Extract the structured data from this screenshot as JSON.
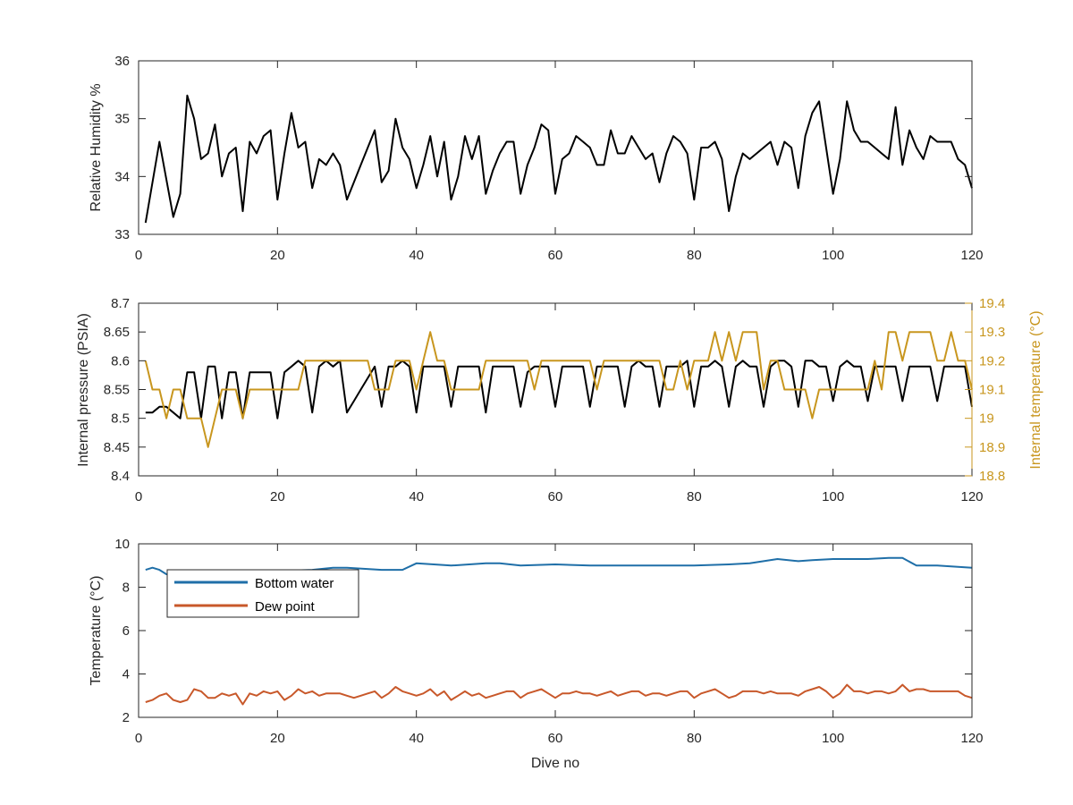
{
  "colors": {
    "black_series": "#000000",
    "internal_temperature": "#c8961e",
    "bottom_water": "#1f6fa8",
    "dew_point": "#c8582a",
    "axis": "#262626"
  },
  "chart_data": [
    {
      "type": "line",
      "xlabel": "",
      "ylabel": "Relative Humidity %",
      "xlim": [
        0,
        120
      ],
      "ylim": [
        33,
        36
      ],
      "xticks": [
        "0",
        "20",
        "40",
        "60",
        "80",
        "100",
        "120"
      ],
      "yticks": [
        "33",
        "34",
        "35",
        "36"
      ],
      "grid": false,
      "series": [
        {
          "color": "#000000",
          "x": [
            1,
            3,
            5,
            6,
            7,
            8,
            9,
            10,
            11,
            12,
            13,
            14,
            15,
            16,
            17,
            18,
            19,
            20,
            21,
            22,
            23,
            24,
            25,
            26,
            27,
            28,
            29,
            30,
            31,
            32,
            33,
            34,
            35,
            36,
            37,
            38,
            39,
            40,
            41,
            42,
            43,
            44,
            45,
            46,
            47,
            48,
            49,
            50,
            51,
            52,
            53,
            54,
            55,
            56,
            57,
            58,
            59,
            60,
            61,
            62,
            63,
            64,
            65,
            66,
            67,
            68,
            69,
            70,
            71,
            72,
            73,
            74,
            75,
            76,
            77,
            78,
            79,
            80,
            81,
            82,
            83,
            84,
            85,
            86,
            87,
            88,
            89,
            90,
            91,
            92,
            93,
            94,
            95,
            96,
            97,
            98,
            99,
            100,
            101,
            102,
            103,
            104,
            105,
            106,
            107,
            108,
            109,
            110,
            111,
            112,
            113,
            114,
            115,
            116,
            117,
            118,
            119,
            120
          ],
          "values": [
            33.2,
            34.6,
            33.3,
            33.7,
            35.4,
            35.0,
            34.3,
            34.4,
            34.9,
            34.0,
            34.4,
            34.5,
            33.4,
            34.6,
            34.4,
            34.7,
            34.8,
            33.6,
            34.4,
            35.1,
            34.5,
            34.6,
            33.8,
            34.3,
            34.2,
            34.4,
            34.2,
            33.6,
            33.9,
            34.2,
            34.5,
            34.8,
            33.9,
            34.1,
            35.0,
            34.5,
            34.3,
            33.8,
            34.2,
            34.7,
            34.0,
            34.6,
            33.6,
            34.0,
            34.7,
            34.3,
            34.7,
            33.7,
            34.1,
            34.4,
            34.6,
            34.6,
            33.7,
            34.2,
            34.5,
            34.9,
            34.8,
            33.7,
            34.3,
            34.4,
            34.7,
            34.6,
            34.5,
            34.2,
            34.2,
            34.8,
            34.4,
            34.4,
            34.7,
            34.5,
            34.3,
            34.4,
            33.9,
            34.4,
            34.7,
            34.6,
            34.4,
            33.6,
            34.5,
            34.5,
            34.6,
            34.3,
            33.4,
            34.0,
            34.4,
            34.3,
            34.4,
            34.5,
            34.6,
            34.2,
            34.6,
            34.5,
            33.8,
            34.7,
            35.1,
            35.3,
            34.5,
            33.7,
            34.3,
            35.3,
            34.8,
            34.6,
            34.6,
            34.5,
            34.4,
            34.3,
            35.2,
            34.2,
            34.8,
            34.5,
            34.3,
            34.7,
            34.6,
            34.6,
            34.6,
            34.3,
            34.2,
            33.8
          ]
        }
      ]
    },
    {
      "type": "line",
      "xlabel": "",
      "ylabel": "Internal pressure (PSIA)",
      "ylabel_right": "Internal temperature (°C)",
      "xlim": [
        0,
        120
      ],
      "ylim": [
        8.4,
        8.7
      ],
      "ylim_right": [
        18.8,
        19.4
      ],
      "xticks": [
        "0",
        "20",
        "40",
        "60",
        "80",
        "100",
        "120"
      ],
      "yticks": [
        "8.4",
        "8.45",
        "8.5",
        "8.55",
        "8.6",
        "8.65",
        "8.7"
      ],
      "yticks_right": [
        "18.8",
        "18.9",
        "19",
        "19.1",
        "19.2",
        "19.3",
        "19.4"
      ],
      "grid": false,
      "series": [
        {
          "axis": "left",
          "color": "#000000",
          "x": [
            1,
            2,
            3,
            4,
            5,
            6,
            7,
            8,
            9,
            10,
            11,
            12,
            13,
            14,
            15,
            16,
            17,
            18,
            19,
            20,
            21,
            22,
            23,
            24,
            25,
            26,
            27,
            28,
            29,
            30,
            31,
            32,
            33,
            34,
            35,
            36,
            37,
            38,
            39,
            40,
            41,
            42,
            43,
            44,
            45,
            46,
            47,
            48,
            49,
            50,
            51,
            52,
            53,
            54,
            55,
            56,
            57,
            58,
            59,
            60,
            61,
            62,
            63,
            64,
            65,
            66,
            67,
            68,
            69,
            70,
            71,
            72,
            73,
            74,
            75,
            76,
            77,
            78,
            79,
            80,
            81,
            82,
            83,
            84,
            85,
            86,
            87,
            88,
            89,
            90,
            91,
            92,
            93,
            94,
            95,
            96,
            97,
            98,
            99,
            100,
            101,
            102,
            103,
            104,
            105,
            106,
            107,
            108,
            109,
            110,
            111,
            112,
            113,
            114,
            115,
            116,
            117,
            118,
            119,
            120
          ],
          "values": [
            8.51,
            8.51,
            8.52,
            8.52,
            8.51,
            8.5,
            8.58,
            8.58,
            8.5,
            8.59,
            8.59,
            8.5,
            8.58,
            8.58,
            8.5,
            8.58,
            8.58,
            8.58,
            8.58,
            8.5,
            8.58,
            8.59,
            8.6,
            8.59,
            8.51,
            8.59,
            8.6,
            8.59,
            8.6,
            8.51,
            8.53,
            8.55,
            8.57,
            8.59,
            8.52,
            8.59,
            8.59,
            8.6,
            8.59,
            8.51,
            8.59,
            8.59,
            8.59,
            8.59,
            8.52,
            8.59,
            8.59,
            8.59,
            8.59,
            8.51,
            8.59,
            8.59,
            8.59,
            8.59,
            8.52,
            8.58,
            8.59,
            8.59,
            8.59,
            8.52,
            8.59,
            8.59,
            8.59,
            8.59,
            8.52,
            8.59,
            8.59,
            8.59,
            8.59,
            8.52,
            8.59,
            8.6,
            8.59,
            8.59,
            8.52,
            8.59,
            8.59,
            8.59,
            8.6,
            8.52,
            8.59,
            8.59,
            8.6,
            8.59,
            8.52,
            8.59,
            8.6,
            8.59,
            8.59,
            8.52,
            8.59,
            8.6,
            8.6,
            8.59,
            8.52,
            8.6,
            8.6,
            8.59,
            8.59,
            8.53,
            8.59,
            8.6,
            8.59,
            8.59,
            8.53,
            8.59,
            8.59,
            8.59,
            8.59,
            8.53,
            8.59,
            8.59,
            8.59,
            8.59,
            8.53,
            8.59,
            8.59,
            8.59,
            8.59,
            8.52
          ]
        },
        {
          "axis": "right",
          "color": "#c8961e",
          "x": [
            1,
            2,
            3,
            4,
            5,
            6,
            7,
            8,
            9,
            10,
            11,
            12,
            13,
            14,
            15,
            16,
            17,
            18,
            19,
            20,
            21,
            22,
            23,
            24,
            25,
            26,
            27,
            28,
            29,
            30,
            31,
            32,
            33,
            34,
            35,
            36,
            37,
            38,
            39,
            40,
            41,
            42,
            43,
            44,
            45,
            46,
            47,
            48,
            49,
            50,
            51,
            52,
            53,
            54,
            55,
            56,
            57,
            58,
            59,
            60,
            61,
            62,
            63,
            64,
            65,
            66,
            67,
            68,
            69,
            70,
            71,
            72,
            73,
            74,
            75,
            76,
            77,
            78,
            79,
            80,
            81,
            82,
            83,
            84,
            85,
            86,
            87,
            88,
            89,
            90,
            91,
            92,
            93,
            94,
            95,
            96,
            97,
            98,
            99,
            100,
            101,
            102,
            103,
            104,
            105,
            106,
            107,
            108,
            109,
            110,
            111,
            112,
            113,
            114,
            115,
            116,
            117,
            118,
            119,
            120
          ],
          "values": [
            19.2,
            19.1,
            19.1,
            19.0,
            19.1,
            19.1,
            19.0,
            19.0,
            19.0,
            18.9,
            19.0,
            19.1,
            19.1,
            19.1,
            19.0,
            19.1,
            19.1,
            19.1,
            19.1,
            19.1,
            19.1,
            19.1,
            19.1,
            19.2,
            19.2,
            19.2,
            19.2,
            19.2,
            19.2,
            19.2,
            19.2,
            19.2,
            19.2,
            19.1,
            19.1,
            19.1,
            19.2,
            19.2,
            19.2,
            19.1,
            19.2,
            19.3,
            19.2,
            19.2,
            19.1,
            19.1,
            19.1,
            19.1,
            19.1,
            19.2,
            19.2,
            19.2,
            19.2,
            19.2,
            19.2,
            19.2,
            19.1,
            19.2,
            19.2,
            19.2,
            19.2,
            19.2,
            19.2,
            19.2,
            19.2,
            19.1,
            19.2,
            19.2,
            19.2,
            19.2,
            19.2,
            19.2,
            19.2,
            19.2,
            19.2,
            19.1,
            19.1,
            19.2,
            19.1,
            19.2,
            19.2,
            19.2,
            19.3,
            19.2,
            19.3,
            19.2,
            19.3,
            19.3,
            19.3,
            19.1,
            19.2,
            19.2,
            19.1,
            19.1,
            19.1,
            19.1,
            19.0,
            19.1,
            19.1,
            19.1,
            19.1,
            19.1,
            19.1,
            19.1,
            19.1,
            19.2,
            19.1,
            19.3,
            19.3,
            19.2,
            19.3,
            19.3,
            19.3,
            19.3,
            19.2,
            19.2,
            19.3,
            19.2,
            19.2,
            19.1
          ]
        }
      ]
    },
    {
      "type": "line",
      "xlabel": "Dive no",
      "ylabel": "Temperature (°C)",
      "xlim": [
        0,
        120
      ],
      "ylim": [
        2,
        10
      ],
      "xticks": [
        "0",
        "20",
        "40",
        "60",
        "80",
        "100",
        "120"
      ],
      "yticks": [
        "2",
        "4",
        "6",
        "8",
        "10"
      ],
      "grid": false,
      "legend_position": "top-left",
      "series": [
        {
          "name": "Bottom water",
          "color": "#1f6fa8",
          "x": [
            1,
            2,
            3,
            4,
            25,
            28,
            30,
            35,
            38,
            40,
            45,
            50,
            52,
            55,
            60,
            65,
            70,
            80,
            85,
            88,
            90,
            92,
            95,
            97,
            100,
            102,
            105,
            108,
            110,
            112,
            115,
            120
          ],
          "values": [
            8.8,
            8.9,
            8.8,
            8.6,
            8.8,
            8.9,
            8.9,
            8.8,
            8.8,
            9.1,
            9.0,
            9.1,
            9.1,
            9.0,
            9.05,
            9.0,
            9.0,
            9.0,
            9.05,
            9.1,
            9.2,
            9.3,
            9.2,
            9.25,
            9.3,
            9.3,
            9.3,
            9.35,
            9.35,
            9.0,
            9.0,
            8.9
          ]
        },
        {
          "name": "Dew point",
          "color": "#c8582a",
          "x": [
            1,
            2,
            3,
            4,
            5,
            6,
            7,
            8,
            9,
            10,
            11,
            12,
            13,
            14,
            15,
            16,
            17,
            18,
            19,
            20,
            21,
            22,
            23,
            24,
            25,
            26,
            27,
            28,
            29,
            30,
            31,
            32,
            33,
            34,
            35,
            36,
            37,
            38,
            39,
            40,
            41,
            42,
            43,
            44,
            45,
            46,
            47,
            48,
            49,
            50,
            51,
            52,
            53,
            54,
            55,
            56,
            57,
            58,
            59,
            60,
            61,
            62,
            63,
            64,
            65,
            66,
            67,
            68,
            69,
            70,
            71,
            72,
            73,
            74,
            75,
            76,
            77,
            78,
            79,
            80,
            81,
            82,
            83,
            84,
            85,
            86,
            87,
            88,
            89,
            90,
            91,
            92,
            93,
            94,
            95,
            96,
            97,
            98,
            99,
            100,
            101,
            102,
            103,
            104,
            105,
            106,
            107,
            108,
            109,
            110,
            111,
            112,
            113,
            114,
            115,
            116,
            117,
            118,
            119,
            120
          ],
          "values": [
            2.7,
            2.8,
            3.0,
            3.1,
            2.8,
            2.7,
            2.8,
            3.3,
            3.2,
            2.9,
            2.9,
            3.1,
            3.0,
            3.1,
            2.6,
            3.1,
            3.0,
            3.2,
            3.1,
            3.2,
            2.8,
            3.0,
            3.3,
            3.1,
            3.2,
            3.0,
            3.1,
            3.1,
            3.1,
            3.0,
            2.9,
            3.0,
            3.1,
            3.2,
            2.9,
            3.1,
            3.4,
            3.2,
            3.1,
            3.0,
            3.1,
            3.3,
            3.0,
            3.2,
            2.8,
            3.0,
            3.2,
            3.0,
            3.1,
            2.9,
            3.0,
            3.1,
            3.2,
            3.2,
            2.9,
            3.1,
            3.2,
            3.3,
            3.1,
            2.9,
            3.1,
            3.1,
            3.2,
            3.1,
            3.1,
            3.0,
            3.1,
            3.2,
            3.0,
            3.1,
            3.2,
            3.2,
            3.0,
            3.1,
            3.1,
            3.0,
            3.1,
            3.2,
            3.2,
            2.9,
            3.1,
            3.2,
            3.3,
            3.1,
            2.9,
            3.0,
            3.2,
            3.2,
            3.2,
            3.1,
            3.2,
            3.1,
            3.1,
            3.1,
            3.0,
            3.2,
            3.3,
            3.4,
            3.2,
            2.9,
            3.1,
            3.5,
            3.2,
            3.2,
            3.1,
            3.2,
            3.2,
            3.1,
            3.2,
            3.5,
            3.2,
            3.3,
            3.3,
            3.2,
            3.2,
            3.2,
            3.2,
            3.2,
            3.0,
            2.9
          ]
        }
      ]
    }
  ]
}
